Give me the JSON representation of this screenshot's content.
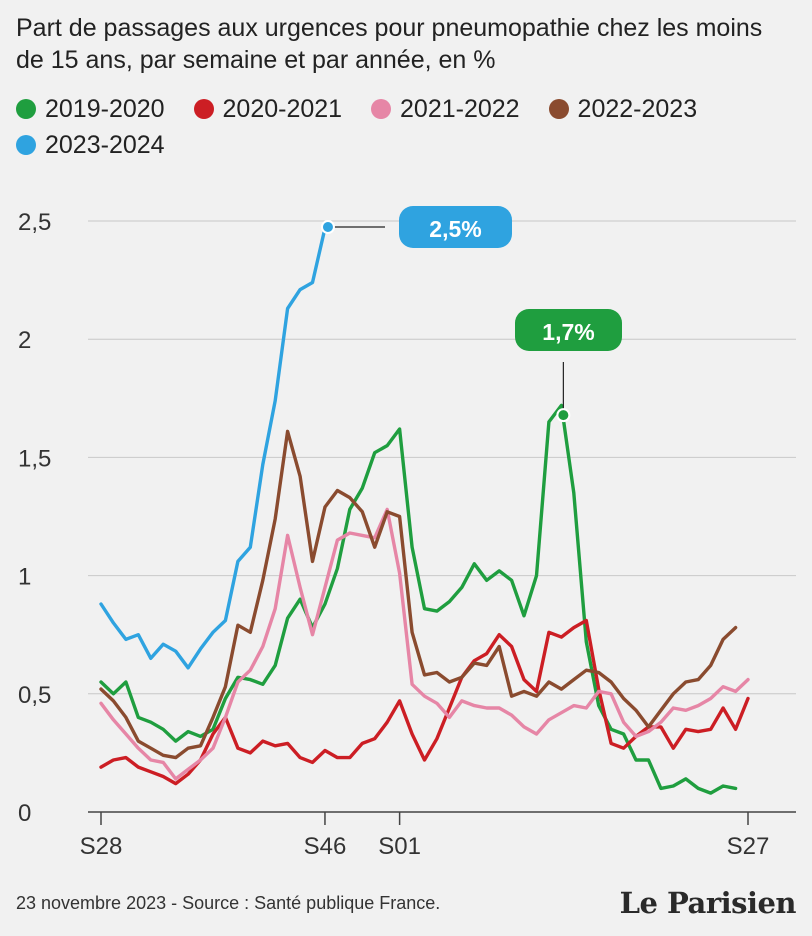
{
  "chart_data": {
    "type": "line",
    "title": "Part de passages aux urgences pour pneumopathie chez les moins de 15 ans, par semaine et par année, en %",
    "xlabel": "",
    "ylabel": "",
    "ylim": [
      0,
      2.5
    ],
    "yticks": [
      0,
      0.5,
      1,
      1.5,
      2,
      2.5
    ],
    "ytick_labels": [
      "0",
      "0,5",
      "1",
      "1,5",
      "2",
      "2,5"
    ],
    "x_count": 53,
    "xticks": [
      {
        "index": 0,
        "label": "S28"
      },
      {
        "index": 18,
        "label": "S46"
      },
      {
        "index": 24,
        "label": "S01"
      },
      {
        "index": 52,
        "label": "S27"
      }
    ],
    "grid": "horizontal",
    "series": [
      {
        "name": "2019-2020",
        "color": "#1f9e3f",
        "values": [
          0.55,
          0.5,
          0.55,
          0.4,
          0.38,
          0.35,
          0.3,
          0.34,
          0.32,
          0.35,
          0.48,
          0.57,
          0.56,
          0.54,
          0.62,
          0.82,
          0.9,
          0.78,
          0.88,
          1.03,
          1.28,
          1.37,
          1.52,
          1.55,
          1.62,
          1.12,
          0.86,
          0.85,
          0.89,
          0.95,
          1.05,
          0.98,
          1.02,
          0.98,
          0.83,
          1.0,
          1.65,
          1.72,
          1.35,
          0.72,
          0.45,
          0.35,
          0.33,
          0.22,
          0.22,
          0.1,
          0.11,
          0.14,
          0.1,
          0.08,
          0.11,
          0.1,
          null
        ]
      },
      {
        "name": "2020-2021",
        "color": "#cc1e24",
        "values": [
          0.19,
          0.22,
          0.23,
          0.19,
          0.17,
          0.15,
          0.12,
          0.16,
          0.22,
          0.33,
          0.4,
          0.27,
          0.25,
          0.3,
          0.28,
          0.29,
          0.23,
          0.21,
          0.26,
          0.23,
          0.23,
          0.29,
          0.31,
          0.38,
          0.47,
          0.33,
          0.22,
          0.31,
          0.44,
          0.57,
          0.64,
          0.67,
          0.75,
          0.7,
          0.56,
          0.51,
          0.76,
          0.74,
          0.78,
          0.81,
          0.52,
          0.29,
          0.27,
          0.32,
          0.36,
          0.36,
          0.27,
          0.35,
          0.34,
          0.35,
          0.44,
          0.35,
          0.48
        ]
      },
      {
        "name": "2021-2022",
        "color": "#e686a6",
        "values": [
          0.46,
          0.39,
          0.33,
          0.27,
          0.22,
          0.21,
          0.14,
          0.18,
          0.22,
          0.27,
          0.4,
          0.55,
          0.6,
          0.7,
          0.86,
          1.17,
          0.95,
          0.75,
          0.95,
          1.15,
          1.18,
          1.17,
          1.16,
          1.28,
          1.01,
          0.54,
          0.49,
          0.46,
          0.4,
          0.47,
          0.45,
          0.44,
          0.44,
          0.41,
          0.36,
          0.33,
          0.39,
          0.42,
          0.45,
          0.44,
          0.51,
          0.5,
          0.38,
          0.32,
          0.34,
          0.38,
          0.44,
          0.43,
          0.45,
          0.48,
          0.53,
          0.51,
          0.56
        ]
      },
      {
        "name": "2022-2023",
        "color": "#8a4b2f",
        "values": [
          0.52,
          0.47,
          0.4,
          0.3,
          0.27,
          0.24,
          0.23,
          0.27,
          0.28,
          0.4,
          0.53,
          0.79,
          0.76,
          0.98,
          1.24,
          1.61,
          1.42,
          1.06,
          1.29,
          1.36,
          1.33,
          1.27,
          1.12,
          1.27,
          1.25,
          0.76,
          0.58,
          0.59,
          0.55,
          0.57,
          0.63,
          0.62,
          0.7,
          0.49,
          0.51,
          0.49,
          0.55,
          0.52,
          0.56,
          0.6,
          0.59,
          0.55,
          0.48,
          0.43,
          0.36,
          0.43,
          0.5,
          0.55,
          0.56,
          0.62,
          0.73,
          0.78,
          null
        ]
      },
      {
        "name": "2023-2024",
        "color": "#2fa3e0",
        "values": [
          0.88,
          0.8,
          0.73,
          0.75,
          0.65,
          0.71,
          0.68,
          0.61,
          0.69,
          0.76,
          0.81,
          1.06,
          1.12,
          1.47,
          1.74,
          2.13,
          2.21,
          2.24,
          2.47,
          null,
          null,
          null,
          null,
          null,
          null,
          null,
          null,
          null,
          null,
          null,
          null,
          null,
          null,
          null,
          null,
          null,
          null,
          null,
          null,
          null,
          null,
          null,
          null,
          null,
          null,
          null,
          null,
          null,
          null,
          null,
          null,
          null,
          null
        ]
      }
    ],
    "annotations": [
      {
        "label": "2,5%",
        "series": "2023-2024",
        "index": 18,
        "value": 2.5,
        "color": "#2fa3e0"
      },
      {
        "label": "1,7%",
        "series": "2019-2020",
        "index": 37,
        "value": 1.7,
        "color": "#1f9e3f"
      }
    ]
  },
  "footer": {
    "source": "23 novembre 2023 - Source : Santé publique France.",
    "logo": "Le Parisien"
  }
}
